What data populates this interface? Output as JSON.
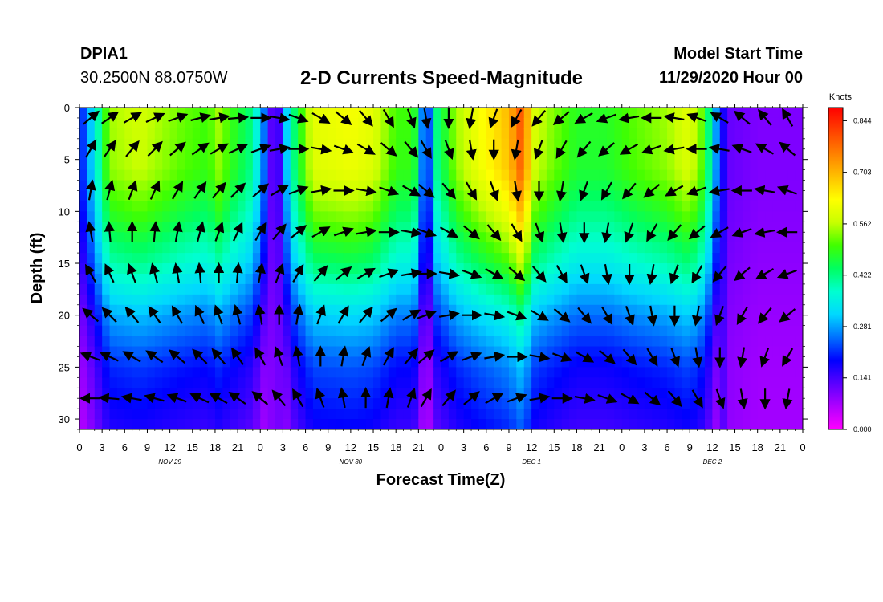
{
  "header": {
    "station": "DPIA1",
    "coords": "30.2500N 88.0750W",
    "title": "2-D Currents Speed-Magnitude",
    "model_start_label": "Model Start Time",
    "model_start_value": "11/29/2020 Hour 00"
  },
  "chart_data": {
    "type": "heatmap",
    "title": "2-D Currents Speed-Magnitude",
    "xlabel": "Forecast Time(Z)",
    "ylabel": "Depth (ft)",
    "x_range_hours": [
      0,
      96
    ],
    "y_range_ft": [
      0,
      31
    ],
    "x_tick_hours": [
      0,
      3,
      6,
      9,
      12,
      15,
      18,
      21,
      24,
      27,
      30,
      33,
      36,
      39,
      42,
      45,
      48,
      51,
      54,
      57,
      60,
      63,
      66,
      69,
      72,
      75,
      78,
      81,
      84,
      87,
      90,
      93,
      96
    ],
    "x_tick_labels": [
      "0",
      "3",
      "6",
      "9",
      "12",
      "15",
      "18",
      "21",
      "0",
      "3",
      "6",
      "9",
      "12",
      "15",
      "18",
      "21",
      "0",
      "3",
      "6",
      "9",
      "12",
      "15",
      "18",
      "21",
      "0",
      "3",
      "6",
      "9",
      "12",
      "15",
      "18",
      "21",
      "0"
    ],
    "y_ticks": [
      0,
      5,
      10,
      15,
      20,
      25,
      30
    ],
    "y_tick_labels": [
      "0",
      "5",
      "10",
      "15",
      "20",
      "25",
      "30"
    ],
    "day_labels": [
      {
        "hour": 12,
        "text": "NOV 29"
      },
      {
        "hour": 36,
        "text": "NOV 30"
      },
      {
        "hour": 60,
        "text": "DEC 1"
      },
      {
        "hour": 84,
        "text": "DEC 2"
      }
    ],
    "colorbar": {
      "unit": "Knots",
      "ticks": [
        0.0,
        0.141,
        0.281,
        0.422,
        0.562,
        0.703,
        0.844
      ],
      "tick_labels": [
        "0.000",
        "0.141",
        "0.281",
        "0.422",
        "0.562",
        "0.703",
        "0.844"
      ],
      "range": [
        0,
        0.88
      ],
      "stops": [
        "#ff00ff",
        "#b000ff",
        "#5a00ff",
        "#0000ff",
        "#0070ff",
        "#00d8ff",
        "#00ffd0",
        "#00ff60",
        "#40ff00",
        "#c8ff00",
        "#ffff00",
        "#ffc000",
        "#ff8000",
        "#ff4000",
        "#ff0000"
      ]
    },
    "speed_time_profile": [
      {
        "t": 0,
        "v": 0.18
      },
      {
        "t": 2,
        "v": 0.35
      },
      {
        "t": 4,
        "v": 0.55
      },
      {
        "t": 8,
        "v": 0.58
      },
      {
        "t": 14,
        "v": 0.52
      },
      {
        "t": 17,
        "v": 0.5
      },
      {
        "t": 18.5,
        "v": 0.55
      },
      {
        "t": 20,
        "v": 0.5
      },
      {
        "t": 23,
        "v": 0.42
      },
      {
        "t": 25,
        "v": 0.2
      },
      {
        "t": 26,
        "v": 0.06
      },
      {
        "t": 28,
        "v": 0.4
      },
      {
        "t": 31,
        "v": 0.6
      },
      {
        "t": 36,
        "v": 0.62
      },
      {
        "t": 39,
        "v": 0.6
      },
      {
        "t": 42,
        "v": 0.5
      },
      {
        "t": 44,
        "v": 0.5
      },
      {
        "t": 45,
        "v": 0.45
      },
      {
        "t": 46,
        "v": 0.08
      },
      {
        "t": 47,
        "v": 0.4
      },
      {
        "t": 50,
        "v": 0.55
      },
      {
        "t": 53,
        "v": 0.62
      },
      {
        "t": 57,
        "v": 0.7
      },
      {
        "t": 59,
        "v": 0.82
      },
      {
        "t": 60,
        "v": 0.6
      },
      {
        "t": 62,
        "v": 0.55
      },
      {
        "t": 66,
        "v": 0.48
      },
      {
        "t": 70,
        "v": 0.48
      },
      {
        "t": 74,
        "v": 0.52
      },
      {
        "t": 78,
        "v": 0.55
      },
      {
        "t": 81,
        "v": 0.6
      },
      {
        "t": 83,
        "v": 0.5
      },
      {
        "t": 84.5,
        "v": 0.28
      },
      {
        "t": 86,
        "v": 0.12
      },
      {
        "t": 90,
        "v": 0.1
      },
      {
        "t": 96,
        "v": 0.1
      }
    ],
    "speed_depth_decay": [
      {
        "d": 0,
        "f": 1.0
      },
      {
        "d": 6,
        "f": 0.98
      },
      {
        "d": 10,
        "f": 0.88
      },
      {
        "d": 15,
        "f": 0.72
      },
      {
        "d": 20,
        "f": 0.52
      },
      {
        "d": 25,
        "f": 0.38
      },
      {
        "d": 31,
        "f": 0.3
      }
    ],
    "arrow_hours": [
      1.5,
      4,
      7,
      10,
      13,
      16,
      18.5,
      21,
      24,
      26.5,
      29,
      32,
      35,
      38,
      41,
      44,
      46,
      49,
      52,
      55,
      58,
      61,
      64,
      67,
      70,
      73,
      76,
      79,
      82,
      85,
      88,
      91,
      94
    ],
    "arrow_depths": [
      1,
      4,
      8,
      12,
      16,
      20,
      24,
      28
    ],
    "arrow_rows": [
      [
        40,
        35,
        30,
        25,
        20,
        15,
        10,
        5,
        0,
        -10,
        -20,
        -30,
        -40,
        -50,
        -60,
        -70,
        -80,
        -90,
        -100,
        -110,
        -120,
        -130,
        -140,
        -150,
        -160,
        -170,
        -180,
        -190,
        -200,
        -210,
        -220,
        -230,
        -240
      ],
      [
        60,
        55,
        50,
        45,
        40,
        35,
        30,
        25,
        20,
        10,
        0,
        -10,
        -20,
        -30,
        -40,
        -50,
        -60,
        -70,
        -80,
        -90,
        -100,
        -110,
        -120,
        -130,
        -140,
        -150,
        -160,
        -170,
        -180,
        -190,
        -200,
        -210,
        -220
      ],
      [
        80,
        75,
        70,
        65,
        60,
        55,
        50,
        45,
        40,
        30,
        20,
        10,
        0,
        -10,
        -20,
        -30,
        -40,
        -50,
        -60,
        -70,
        -80,
        -90,
        -100,
        -110,
        -120,
        -130,
        -140,
        -150,
        -160,
        -170,
        -180,
        -190,
        -200
      ],
      [
        100,
        95,
        90,
        85,
        80,
        75,
        70,
        65,
        60,
        50,
        40,
        30,
        20,
        10,
        0,
        -10,
        -20,
        -30,
        -40,
        -50,
        -60,
        -70,
        -80,
        -90,
        -100,
        -110,
        -120,
        -130,
        -140,
        -150,
        -160,
        -170,
        -180
      ],
      [
        120,
        115,
        110,
        105,
        100,
        95,
        90,
        85,
        80,
        70,
        60,
        50,
        40,
        30,
        20,
        10,
        0,
        -10,
        -20,
        -30,
        -40,
        -50,
        -60,
        -70,
        -80,
        -90,
        -100,
        -110,
        -120,
        -130,
        -140,
        -150,
        -160
      ],
      [
        140,
        135,
        130,
        125,
        120,
        115,
        110,
        105,
        100,
        90,
        80,
        70,
        60,
        50,
        40,
        30,
        20,
        10,
        0,
        -10,
        -20,
        -30,
        -40,
        -50,
        -60,
        -70,
        -80,
        -90,
        -100,
        -110,
        -120,
        -130,
        -140
      ],
      [
        160,
        155,
        150,
        145,
        140,
        135,
        130,
        125,
        120,
        110,
        100,
        90,
        80,
        70,
        60,
        50,
        40,
        30,
        20,
        10,
        0,
        -10,
        -20,
        -30,
        -40,
        -50,
        -60,
        -70,
        -80,
        -90,
        -100,
        -110,
        -120
      ],
      [
        180,
        175,
        170,
        165,
        160,
        155,
        150,
        145,
        140,
        130,
        120,
        110,
        100,
        90,
        80,
        70,
        60,
        50,
        40,
        30,
        20,
        10,
        0,
        -10,
        -20,
        -30,
        -40,
        -50,
        -60,
        -70,
        -80,
        -90,
        -100
      ]
    ]
  }
}
